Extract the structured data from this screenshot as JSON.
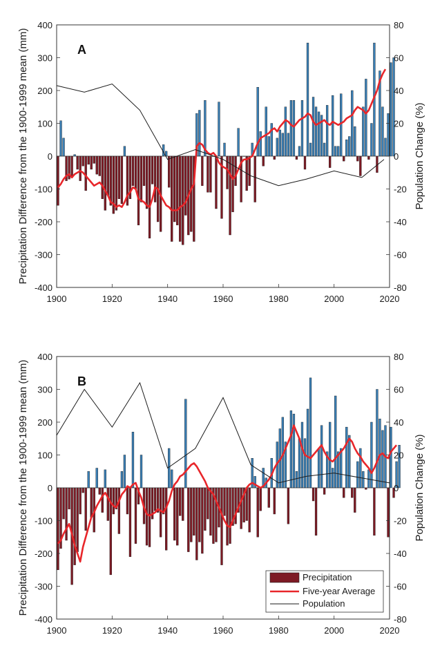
{
  "colors": {
    "positive": "#3a7fb5",
    "negative": "#7d1a24",
    "average": "#e8262a",
    "population": "#1a1a1a"
  },
  "chart_data": [
    {
      "type": "bar",
      "panel_label": "A",
      "ylabel": "Precipitation Difference from the 1900-1999 mean (mm)",
      "y2label": "Population Change (%)",
      "xlim": [
        1900,
        2020
      ],
      "ylim": [
        -400,
        400
      ],
      "y2lim": [
        -80,
        80
      ],
      "xticks": [
        "1900",
        "1920",
        "1940",
        "1960",
        "1980",
        "2000",
        "2020"
      ],
      "yticks": [
        "-400",
        "-300",
        "-200",
        "-100",
        "0",
        "100",
        "200",
        "300",
        "400"
      ],
      "y2ticks": [
        "-80",
        "-60",
        "-40",
        "-20",
        "0",
        "20",
        "40",
        "60",
        "80"
      ],
      "x_start": 1900,
      "precip": [
        -150,
        108,
        55,
        -75,
        -70,
        -65,
        5,
        -40,
        -75,
        -30,
        -105,
        -25,
        -40,
        -22,
        -55,
        -60,
        -130,
        -165,
        -120,
        -150,
        -175,
        -165,
        -130,
        -145,
        30,
        -150,
        -130,
        -90,
        -100,
        -210,
        -140,
        -90,
        -160,
        -250,
        -85,
        -140,
        -200,
        -230,
        35,
        15,
        -95,
        -260,
        -200,
        -210,
        -260,
        -270,
        -180,
        -240,
        -230,
        -260,
        130,
        140,
        -90,
        170,
        -110,
        -110,
        0,
        -160,
        165,
        -190,
        40,
        -100,
        -240,
        -170,
        -90,
        85,
        -140,
        0,
        -105,
        -90,
        40,
        -140,
        210,
        75,
        -30,
        150,
        60,
        100,
        -10,
        55,
        80,
        70,
        150,
        70,
        170,
        170,
        -10,
        30,
        170,
        -40,
        345,
        40,
        180,
        150,
        135,
        125,
        40,
        155,
        -35,
        185,
        30,
        30,
        190,
        -15,
        50,
        60,
        200,
        90,
        -15,
        -60,
        150,
        235,
        -10,
        100,
        345,
        -50,
        260,
        150,
        55,
        130,
        285,
        300
      ],
      "avg": [
        -95,
        -85,
        -70,
        -60,
        -55,
        -65,
        -55,
        -50,
        -45,
        -50,
        -60,
        -70,
        -80,
        -90,
        -85,
        -80,
        -90,
        -105,
        -120,
        -140,
        -145,
        -155,
        -150,
        -155,
        -140,
        -120,
        -110,
        -95,
        -100,
        -130,
        -135,
        -140,
        -150,
        -155,
        -130,
        -95,
        -100,
        -120,
        -135,
        -150,
        -155,
        -165,
        -165,
        -165,
        -155,
        -150,
        -140,
        -120,
        -100,
        -85,
        30,
        40,
        35,
        20,
        10,
        5,
        10,
        0,
        -20,
        -30,
        -35,
        -40,
        -55,
        -70,
        -60,
        -40,
        -20,
        -10,
        -10,
        -5,
        0,
        20,
        40,
        55,
        60,
        65,
        70,
        80,
        85,
        75,
        90,
        100,
        110,
        105,
        95,
        90,
        100,
        110,
        115,
        120,
        130,
        125,
        105,
        95,
        100,
        105,
        110,
        100,
        95,
        105,
        100,
        95,
        100,
        105,
        115,
        120,
        125,
        140,
        150,
        145,
        140,
        130,
        140,
        160,
        180,
        200,
        230,
        250,
        265
      ],
      "population": [
        [
          1900,
          43
        ],
        [
          1910,
          39
        ],
        [
          1920,
          44
        ],
        [
          1930,
          28
        ],
        [
          1940,
          -2
        ],
        [
          1950,
          4
        ],
        [
          1960,
          -2
        ],
        [
          1970,
          -12
        ],
        [
          1980,
          -18
        ],
        [
          1990,
          -14
        ],
        [
          2000,
          -9
        ],
        [
          2010,
          -13
        ],
        [
          2018,
          -2
        ]
      ]
    },
    {
      "type": "bar",
      "panel_label": "B",
      "ylabel": "Precipitation Difference from the 1900-1999 mean (mm)",
      "y2label": "Population Change (%)",
      "xlim": [
        1900,
        2020
      ],
      "ylim": [
        -400,
        400
      ],
      "y2lim": [
        -80,
        80
      ],
      "xticks": [
        "1900",
        "1920",
        "1940",
        "1960",
        "1980",
        "2000",
        "2020"
      ],
      "yticks": [
        "-400",
        "-300",
        "-200",
        "-100",
        "0",
        "100",
        "200",
        "300",
        "400"
      ],
      "y2ticks": [
        "-80",
        "-60",
        "-40",
        "-20",
        "0",
        "20",
        "40",
        "60",
        "80"
      ],
      "x_start": 1900,
      "precip": [
        -250,
        -185,
        -95,
        -160,
        -65,
        -295,
        -235,
        -195,
        -80,
        -15,
        -130,
        50,
        -90,
        -135,
        60,
        -20,
        -75,
        55,
        -100,
        -265,
        -80,
        -65,
        -140,
        50,
        100,
        -80,
        -210,
        170,
        -170,
        -50,
        100,
        -110,
        -175,
        -180,
        -95,
        -70,
        -75,
        -150,
        -80,
        -190,
        120,
        55,
        -160,
        -175,
        -85,
        -100,
        270,
        -195,
        -165,
        -145,
        -220,
        -165,
        -200,
        -130,
        -95,
        -145,
        -170,
        -165,
        -120,
        -235,
        -85,
        -175,
        -170,
        -115,
        -110,
        -75,
        -125,
        -105,
        -100,
        -135,
        90,
        35,
        -150,
        -70,
        60,
        30,
        -60,
        90,
        -80,
        140,
        180,
        215,
        140,
        -110,
        235,
        225,
        50,
        150,
        200,
        150,
        240,
        335,
        -40,
        -145,
        120,
        190,
        -20,
        110,
        200,
        60,
        280,
        110,
        120,
        -30,
        185,
        160,
        -30,
        -75,
        80,
        120,
        50,
        -5,
        55,
        200,
        -145,
        300,
        210,
        175,
        190,
        -150,
        185,
        -30,
        80,
        130
      ],
      "avg": [
        -170,
        -160,
        -140,
        -125,
        -110,
        -140,
        -175,
        -200,
        -225,
        -180,
        -150,
        -120,
        -90,
        -75,
        -55,
        -40,
        -25,
        -15,
        -30,
        -45,
        -55,
        -60,
        -40,
        -20,
        -10,
        5,
        0,
        10,
        15,
        -10,
        -30,
        -60,
        -80,
        -85,
        -80,
        -75,
        -65,
        -70,
        -75,
        -60,
        -40,
        -10,
        10,
        20,
        35,
        40,
        50,
        60,
        70,
        75,
        65,
        50,
        35,
        20,
        0,
        -10,
        -20,
        -40,
        -60,
        -80,
        -100,
        -115,
        -120,
        -100,
        -80,
        -60,
        -40,
        -20,
        0,
        10,
        15,
        10,
        5,
        0,
        5,
        15,
        25,
        40,
        60,
        75,
        85,
        100,
        120,
        140,
        160,
        190,
        170,
        150,
        120,
        100,
        95,
        90,
        100,
        110,
        120,
        130,
        110,
        95,
        85,
        80,
        90,
        100,
        110,
        120,
        135,
        150,
        140,
        120,
        105,
        95,
        80,
        70,
        60,
        45,
        60,
        80,
        100,
        105,
        95,
        90,
        110,
        120,
        130
      ],
      "population": [
        [
          1900,
          32
        ],
        [
          1910,
          60
        ],
        [
          1920,
          37
        ],
        [
          1930,
          64
        ],
        [
          1940,
          12
        ],
        [
          1950,
          24
        ],
        [
          1960,
          55
        ],
        [
          1970,
          14
        ],
        [
          1980,
          3
        ],
        [
          1990,
          7
        ],
        [
          2000,
          9
        ],
        [
          2010,
          6
        ],
        [
          2020,
          3
        ]
      ]
    }
  ],
  "legend": {
    "items": [
      {
        "label": "Precipitation",
        "kind": "bar"
      },
      {
        "label": "Five-year Average",
        "kind": "line"
      },
      {
        "label": "Population",
        "kind": "thin-line"
      }
    ]
  }
}
